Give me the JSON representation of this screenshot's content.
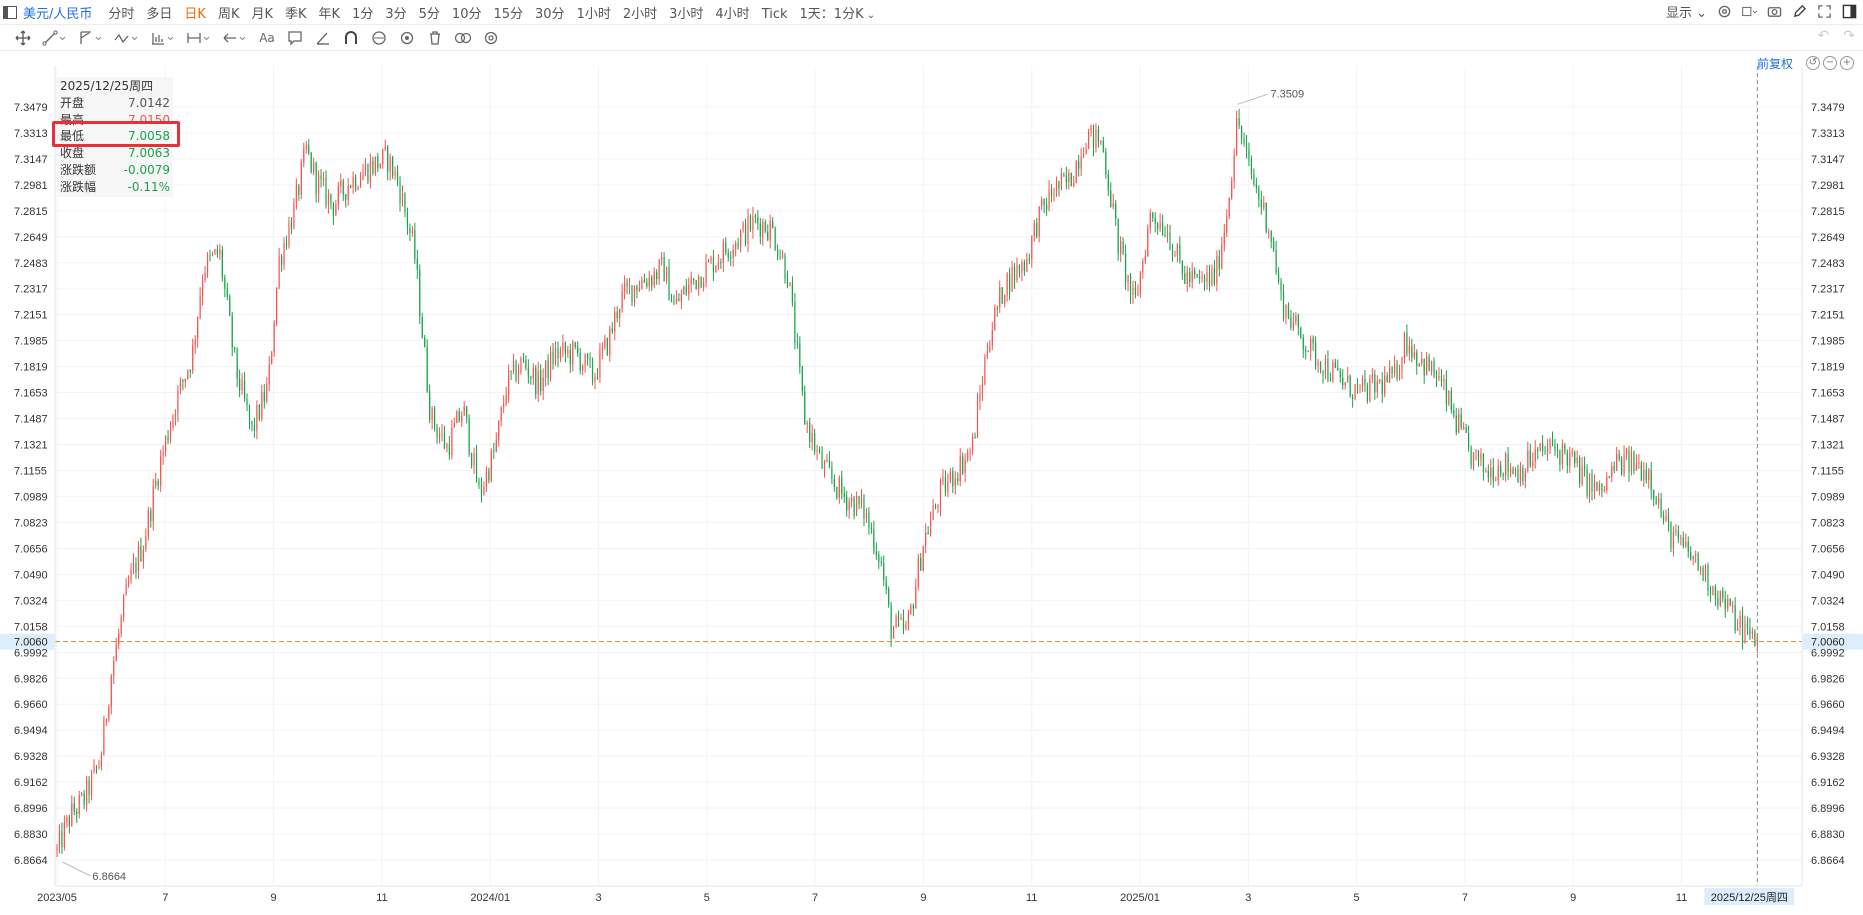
{
  "topbar": {
    "symbol": "美元/人民币",
    "periods": [
      "分时",
      "多日",
      "日K",
      "周K",
      "月K",
      "季K",
      "年K",
      "1分",
      "3分",
      "5分",
      "10分",
      "15分",
      "30分",
      "1小时",
      "2小时",
      "3小时",
      "4小时",
      "Tick",
      "1天：1分K"
    ],
    "active_period": "日K",
    "display_label": "显示"
  },
  "toolbar": {
    "tools": [
      "move",
      "segment",
      "fibonacci",
      "wave",
      "pattern",
      "range",
      "arrow",
      "text",
      "comment",
      "angle",
      "magnet",
      "eye",
      "ring",
      "trash",
      "compare",
      "settings"
    ],
    "text_tool_label": "Aa"
  },
  "chart_header": {
    "adjust_label": "前复权"
  },
  "ohlc_panel": {
    "date": "2025/12/25周四",
    "rows": [
      {
        "label": "开盘",
        "value": "7.0142",
        "tone": "nt"
      },
      {
        "label": "最高",
        "value": "7.0150",
        "tone": "up"
      },
      {
        "label": "最低",
        "value": "7.0058",
        "tone": "dn"
      },
      {
        "label": "收盘",
        "value": "7.0063",
        "tone": "dn"
      },
      {
        "label": "涨跌额",
        "value": "-0.0079",
        "tone": "dn"
      },
      {
        "label": "涨跌幅",
        "value": "-0.11%",
        "tone": "dn"
      }
    ]
  },
  "colors": {
    "up": "#f5534f",
    "down": "#17a34a",
    "accent": "#1e6fd9",
    "active": "#f06a00",
    "highlight": "#ec2e3b",
    "crosshair": "#c98a3a"
  },
  "chart_data": {
    "type": "candlestick",
    "title": "",
    "ylim": [
      6.8664,
      7.3509
    ],
    "y_ticks": [
      "7.3479",
      "7.3313",
      "7.3147",
      "7.2981",
      "7.2815",
      "7.2649",
      "7.2483",
      "7.2317",
      "7.2151",
      "7.1985",
      "7.1819",
      "7.1653",
      "7.1487",
      "7.1321",
      "7.1155",
      "7.0989",
      "7.0823",
      "7.0656",
      "7.0490",
      "7.0324",
      "7.0158",
      "6.9992",
      "6.9826",
      "6.9660",
      "6.9494",
      "6.9328",
      "6.9162",
      "6.8996",
      "6.8830",
      "6.8664"
    ],
    "x_ticks": [
      "2023/05",
      "7",
      "9",
      "11",
      "2024/01",
      "3",
      "5",
      "7",
      "9",
      "11",
      "2025/01",
      "3",
      "5",
      "7",
      "9",
      "11"
    ],
    "x_tick_months": [
      0,
      2,
      4,
      6,
      8,
      10,
      12,
      14,
      16,
      18,
      20,
      22,
      24,
      26,
      28,
      30
    ],
    "start_month": 0,
    "end_month": 31.8,
    "period_high": "7.3509",
    "period_low": "6.8664",
    "last_price": "7.0060",
    "last_price_value": 7.006,
    "crosshair_date": "2025/12/25周四",
    "month_anchors": [
      [
        0.0,
        6.872
      ],
      [
        0.25,
        6.895
      ],
      [
        0.5,
        6.905
      ],
      [
        0.8,
        6.93
      ],
      [
        1.0,
        6.985
      ],
      [
        1.3,
        7.04
      ],
      [
        1.6,
        7.07
      ],
      [
        1.9,
        7.12
      ],
      [
        2.2,
        7.16
      ],
      [
        2.5,
        7.19
      ],
      [
        2.7,
        7.245
      ],
      [
        3.0,
        7.255
      ],
      [
        3.3,
        7.18
      ],
      [
        3.6,
        7.14
      ],
      [
        3.9,
        7.17
      ],
      [
        4.1,
        7.25
      ],
      [
        4.4,
        7.285
      ],
      [
        4.6,
        7.32
      ],
      [
        4.8,
        7.3
      ],
      [
        5.1,
        7.285
      ],
      [
        5.4,
        7.3
      ],
      [
        5.8,
        7.31
      ],
      [
        6.1,
        7.315
      ],
      [
        6.3,
        7.3
      ],
      [
        6.6,
        7.255
      ],
      [
        6.9,
        7.15
      ],
      [
        7.2,
        7.13
      ],
      [
        7.5,
        7.155
      ],
      [
        7.8,
        7.1
      ],
      [
        8.1,
        7.13
      ],
      [
        8.3,
        7.17
      ],
      [
        8.6,
        7.185
      ],
      [
        8.9,
        7.17
      ],
      [
        9.2,
        7.19
      ],
      [
        9.6,
        7.19
      ],
      [
        9.9,
        7.175
      ],
      [
        10.2,
        7.2
      ],
      [
        10.4,
        7.225
      ],
      [
        10.7,
        7.235
      ],
      [
        11.0,
        7.24
      ],
      [
        11.2,
        7.245
      ],
      [
        11.4,
        7.22
      ],
      [
        11.7,
        7.235
      ],
      [
        12.0,
        7.245
      ],
      [
        12.3,
        7.255
      ],
      [
        12.6,
        7.265
      ],
      [
        12.9,
        7.275
      ],
      [
        13.2,
        7.27
      ],
      [
        13.5,
        7.24
      ],
      [
        13.8,
        7.15
      ],
      [
        14.1,
        7.12
      ],
      [
        14.5,
        7.1
      ],
      [
        14.9,
        7.09
      ],
      [
        15.2,
        7.06
      ],
      [
        15.4,
        7.015
      ],
      [
        15.7,
        7.013
      ],
      [
        16.0,
        7.07
      ],
      [
        16.3,
        7.1
      ],
      [
        16.6,
        7.115
      ],
      [
        16.9,
        7.13
      ],
      [
        17.2,
        7.2
      ],
      [
        17.5,
        7.235
      ],
      [
        17.9,
        7.25
      ],
      [
        18.1,
        7.275
      ],
      [
        18.4,
        7.295
      ],
      [
        18.7,
        7.3
      ],
      [
        19.0,
        7.33
      ],
      [
        19.3,
        7.325
      ],
      [
        19.6,
        7.26
      ],
      [
        19.9,
        7.22
      ],
      [
        20.2,
        7.28
      ],
      [
        20.5,
        7.27
      ],
      [
        20.8,
        7.24
      ],
      [
        21.1,
        7.235
      ],
      [
        21.4,
        7.24
      ],
      [
        21.6,
        7.28
      ],
      [
        21.8,
        7.34
      ],
      [
        22.0,
        7.31
      ],
      [
        22.2,
        7.29
      ],
      [
        22.4,
        7.27
      ],
      [
        22.6,
        7.225
      ],
      [
        22.9,
        7.205
      ],
      [
        23.2,
        7.19
      ],
      [
        23.5,
        7.18
      ],
      [
        23.8,
        7.17
      ],
      [
        24.1,
        7.165
      ],
      [
        24.4,
        7.17
      ],
      [
        24.7,
        7.175
      ],
      [
        24.9,
        7.2
      ],
      [
        25.2,
        7.185
      ],
      [
        25.5,
        7.175
      ],
      [
        25.8,
        7.15
      ],
      [
        26.1,
        7.125
      ],
      [
        26.4,
        7.115
      ],
      [
        26.7,
        7.12
      ],
      [
        27.0,
        7.115
      ],
      [
        27.3,
        7.125
      ],
      [
        27.6,
        7.13
      ],
      [
        27.9,
        7.125
      ],
      [
        28.2,
        7.11
      ],
      [
        28.5,
        7.1
      ],
      [
        28.8,
        7.12
      ],
      [
        29.1,
        7.12
      ],
      [
        29.4,
        7.115
      ],
      [
        29.7,
        7.08
      ],
      [
        29.9,
        7.07
      ],
      [
        30.2,
        7.06
      ],
      [
        30.5,
        7.045
      ],
      [
        30.8,
        7.03
      ],
      [
        31.1,
        7.015
      ],
      [
        31.4,
        7.006
      ]
    ]
  }
}
